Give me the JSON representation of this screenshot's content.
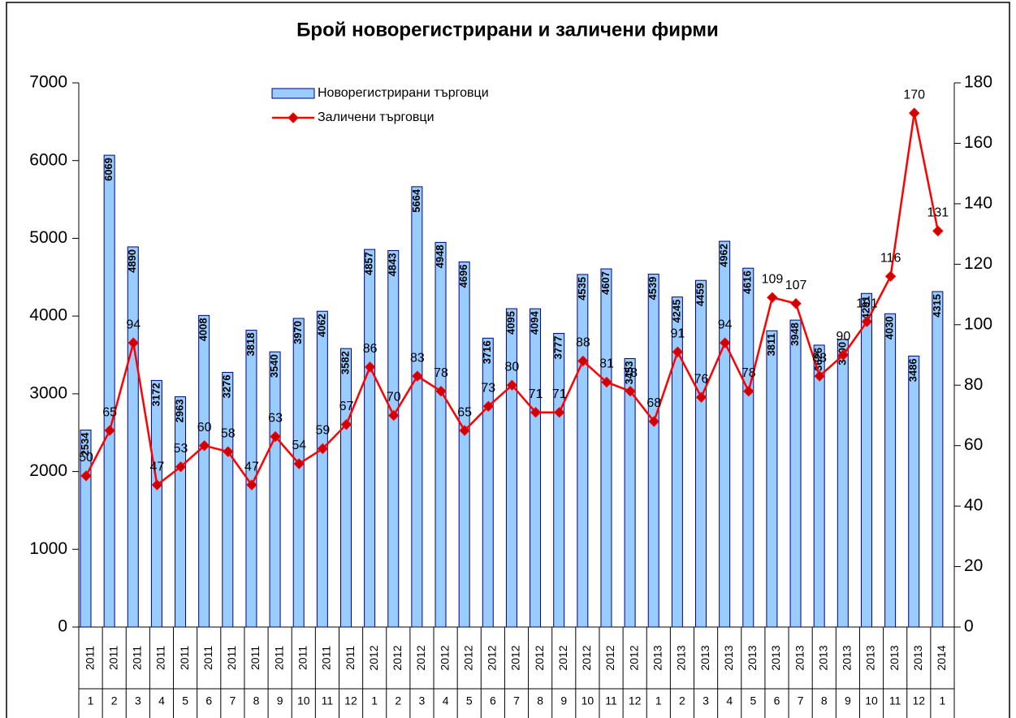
{
  "chart_data": {
    "type": "bar-line",
    "title": "Брой новорегистрирани и заличени фирми",
    "x_years": [
      "2011",
      "2011",
      "2011",
      "2011",
      "2011",
      "2011",
      "2011",
      "2011",
      "2011",
      "2011",
      "2011",
      "2011",
      "2012",
      "2012",
      "2012",
      "2012",
      "2012",
      "2012",
      "2012",
      "2012",
      "2012",
      "2012",
      "2012",
      "2012",
      "2013",
      "2013",
      "2013",
      "2013",
      "2013",
      "2013",
      "2013",
      "2013",
      "2013",
      "2013",
      "2013",
      "2013",
      "2014"
    ],
    "categories": [
      "1",
      "2",
      "3",
      "4",
      "5",
      "6",
      "7",
      "8",
      "9",
      "10",
      "11",
      "12",
      "1",
      "2",
      "3",
      "4",
      "5",
      "6",
      "7",
      "8",
      "9",
      "10",
      "11",
      "12",
      "1",
      "2",
      "3",
      "4",
      "5",
      "6",
      "7",
      "8",
      "9",
      "10",
      "11",
      "12",
      "1"
    ],
    "series": [
      {
        "name": "Новорегистрирани търговци",
        "type": "bar",
        "color": "#99ccff",
        "values": [
          2534,
          6069,
          4890,
          3172,
          2963,
          4008,
          3276,
          3818,
          3540,
          3970,
          4062,
          3582,
          4857,
          4843,
          5664,
          4948,
          4696,
          3716,
          4095,
          4094,
          3777,
          4535,
          4607,
          3453,
          4539,
          4245,
          4459,
          4962,
          4616,
          3811,
          3948,
          3626,
          3700,
          4291,
          4030,
          3486,
          4315
        ]
      },
      {
        "name": "Заличени търговци",
        "type": "line",
        "axis": "y2",
        "color": "#ff0000",
        "values": [
          50,
          65,
          94,
          47,
          53,
          60,
          58,
          47,
          63,
          54,
          59,
          67,
          86,
          70,
          83,
          78,
          65,
          73,
          80,
          71,
          71,
          88,
          81,
          78,
          68,
          91,
          76,
          94,
          78,
          109,
          107,
          83,
          90,
          101,
          116,
          170,
          131
        ]
      }
    ],
    "ylim": [
      0,
      7000
    ],
    "yticks": [
      0,
      1000,
      2000,
      3000,
      4000,
      5000,
      6000,
      7000
    ],
    "y2lim": [
      0,
      180
    ],
    "y2ticks": [
      0,
      20,
      40,
      60,
      80,
      100,
      120,
      140,
      160,
      180
    ]
  }
}
